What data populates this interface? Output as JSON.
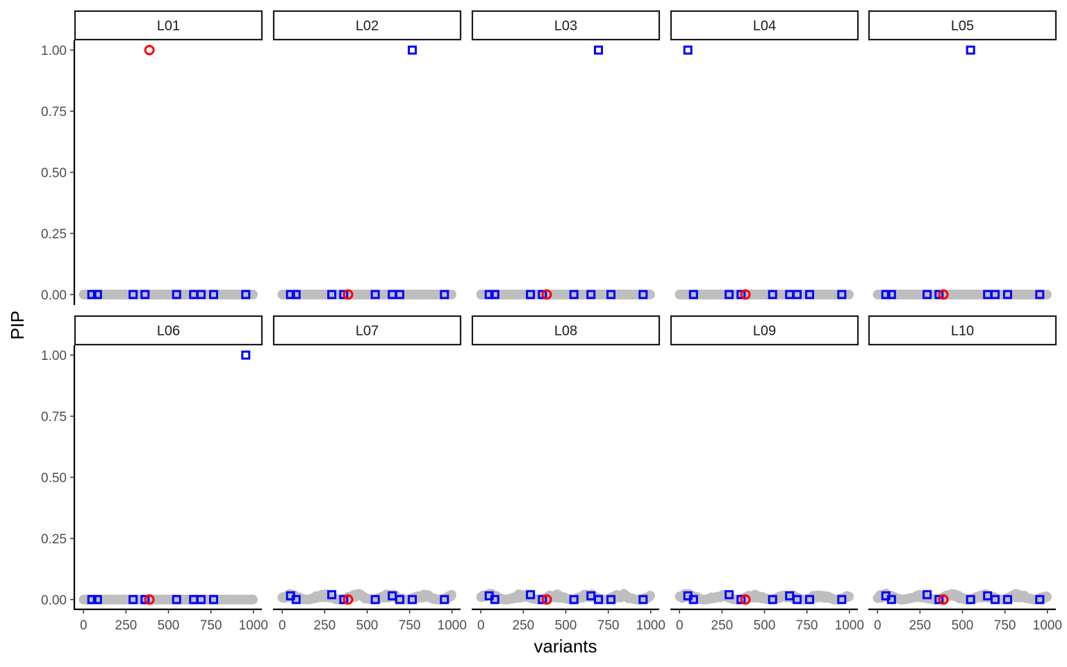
{
  "chart_data": {
    "type": "scatter",
    "title": "",
    "xlabel": "variants",
    "ylabel": "PIP",
    "xlim": [
      -50,
      1050
    ],
    "ylim": [
      -0.04,
      1.04
    ],
    "x_ticks": [
      "0",
      "250",
      "500",
      "750",
      "1000"
    ],
    "x_tick_values": [
      0,
      250,
      500,
      750,
      1000
    ],
    "y_ticks": [
      "0.00",
      "0.25",
      "0.50",
      "0.75",
      "1.00"
    ],
    "y_tick_values": [
      0,
      0.25,
      0.5,
      0.75,
      1.0
    ],
    "grid": false,
    "colors": {
      "background_points": "#bebebe",
      "causal_marker": "#0000ff",
      "top_variant_marker": "#ff0000",
      "strip_fill": "#ffffff",
      "axis": "#000000"
    },
    "series_description": {
      "background": "all variants PIP (grey filled circles)",
      "causal": "true causal variants (blue open squares)",
      "lead": "lead variant (red open circle)"
    },
    "causal_variants": [
      49,
      82,
      292,
      362,
      548,
      648,
      692,
      766,
      955
    ],
    "lead_variant": 388,
    "panels": [
      {
        "label": "L01",
        "causal_pip": [
          0,
          0,
          0,
          0,
          0,
          0,
          0,
          0,
          0
        ],
        "lead_pip": 1.0,
        "noise": 0.0
      },
      {
        "label": "L02",
        "causal_pip": [
          0,
          0,
          0,
          0,
          0,
          0,
          0,
          1.0,
          0
        ],
        "lead_pip": 0,
        "noise": 0.0
      },
      {
        "label": "L03",
        "causal_pip": [
          0,
          0,
          0,
          0,
          0,
          0,
          1.0,
          0,
          0
        ],
        "lead_pip": 0,
        "noise": 0.0
      },
      {
        "label": "L04",
        "causal_pip": [
          1.0,
          0,
          0,
          0,
          0,
          0,
          0,
          0,
          0
        ],
        "lead_pip": 0,
        "noise": 0.0
      },
      {
        "label": "L05",
        "causal_pip": [
          0,
          0,
          0,
          0,
          1.0,
          0,
          0,
          0,
          0
        ],
        "lead_pip": 0,
        "noise": 0.0
      },
      {
        "label": "L06",
        "causal_pip": [
          0,
          0,
          0,
          0,
          0,
          0,
          0,
          0,
          1.0
        ],
        "lead_pip": 0,
        "noise": 0.0
      },
      {
        "label": "L07",
        "causal_pip": [
          0.015,
          0,
          0.02,
          0,
          0,
          0.015,
          0,
          0,
          0
        ],
        "lead_pip": 0,
        "noise": 0.025
      },
      {
        "label": "L08",
        "causal_pip": [
          0.015,
          0,
          0.02,
          0,
          0,
          0.015,
          0,
          0,
          0
        ],
        "lead_pip": 0,
        "noise": 0.025
      },
      {
        "label": "L09",
        "causal_pip": [
          0.015,
          0,
          0.02,
          0,
          0,
          0.015,
          0,
          0,
          0
        ],
        "lead_pip": 0,
        "noise": 0.025
      },
      {
        "label": "L10",
        "causal_pip": [
          0.015,
          0,
          0.02,
          0,
          0,
          0.015,
          0,
          0,
          0
        ],
        "lead_pip": 0,
        "noise": 0.025
      }
    ]
  }
}
